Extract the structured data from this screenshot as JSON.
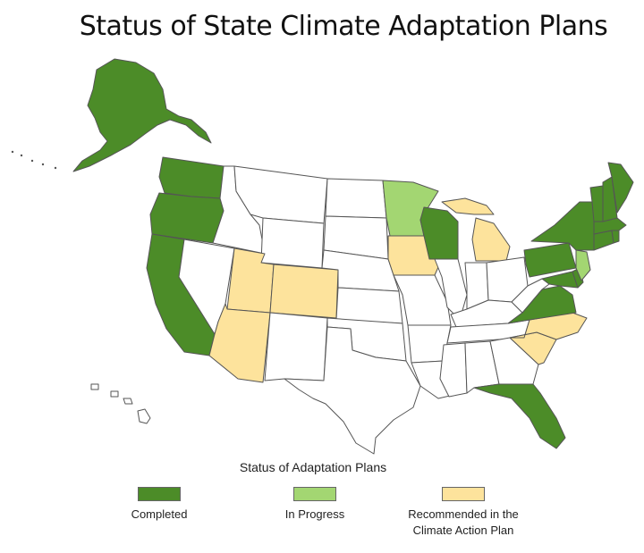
{
  "title": "Status of State Climate Adaptation Plans",
  "colors": {
    "completed": "#4c8c28",
    "in_progress": "#a3d672",
    "recommended": "#fde39c",
    "none": "#ffffff",
    "border": "#555555"
  },
  "map": {
    "states_completed": [
      "Alaska",
      "Washington",
      "Oregon",
      "California",
      "Wisconsin",
      "Pennsylvania",
      "Virginia",
      "Florida",
      "New York",
      "Vermont",
      "New Hampshire",
      "Maine",
      "Massachusetts",
      "Connecticut",
      "Rhode Island",
      "Maryland",
      "Delaware"
    ],
    "states_in_progress": [
      "Minnesota",
      "New Jersey"
    ],
    "states_recommended": [
      "Utah",
      "Colorado",
      "Arizona",
      "Iowa",
      "Michigan",
      "North Carolina",
      "South Carolina"
    ]
  },
  "legend": {
    "title": "Status of Adaptation Plans",
    "items": [
      {
        "key": "completed",
        "label": "Completed"
      },
      {
        "key": "in_progress",
        "label": "In Progress"
      },
      {
        "key": "recommended",
        "label": "Recommended in the\nClimate Action Plan"
      }
    ]
  }
}
